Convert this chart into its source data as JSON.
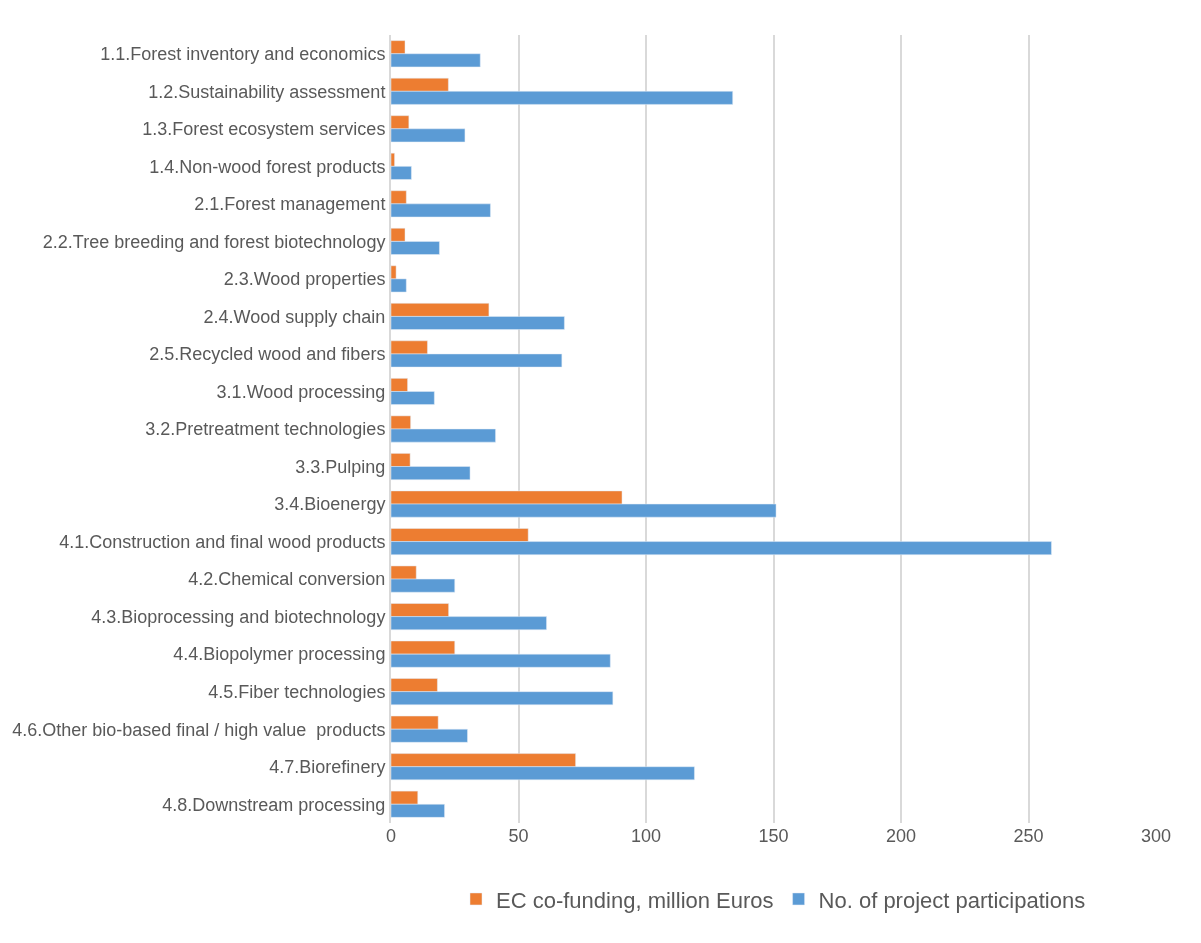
{
  "chart_data": {
    "type": "bar",
    "orientation": "horizontal",
    "categories": [
      "1.1.Forest inventory and economics",
      "1.2.Sustainability assessment",
      "1.3.Forest ecosystem services",
      "1.4.Non-wood forest products",
      "2.1.Forest management",
      "2.2.Tree breeding and forest biotechnology",
      "2.3.Wood properties",
      "2.4.Wood supply chain",
      "2.5.Recycled wood and fibers",
      "3.1.Wood processing",
      "3.2.Pretreatment technologies",
      "3.3.Pulping",
      "3.4.Bioenergy",
      "4.1.Construction and final wood products",
      "4.2.Chemical conversion",
      "4.3.Bioprocessing and biotechnology",
      "4.4.Biopolymer processing",
      "4.5.Fiber technologies",
      "4.6.Other bio-based final / high value  products",
      "4.7.Biorefinery",
      "4.8.Downstream processing"
    ],
    "series": [
      {
        "name": "EC co-funding, million Euros",
        "color": "#ed7d31",
        "values": [
          5.5,
          22.5,
          7,
          1.4,
          6,
          5.5,
          2,
          38.4,
          14.3,
          6.5,
          7.7,
          7.5,
          90.6,
          53.8,
          9.9,
          22.6,
          25,
          18.2,
          18.5,
          72.4,
          10.5
        ]
      },
      {
        "name": "No. of project participations",
        "color": "#5b9bd5",
        "values": [
          35,
          134,
          29,
          8,
          39,
          19,
          6,
          68,
          67,
          17,
          41,
          31,
          151,
          259,
          25,
          61,
          86,
          87,
          30,
          119,
          21
        ]
      }
    ],
    "xlim": [
      0,
      300
    ],
    "xticks": [
      0,
      50,
      100,
      150,
      200,
      250,
      300
    ],
    "grid": "x",
    "legend": "bottom"
  }
}
